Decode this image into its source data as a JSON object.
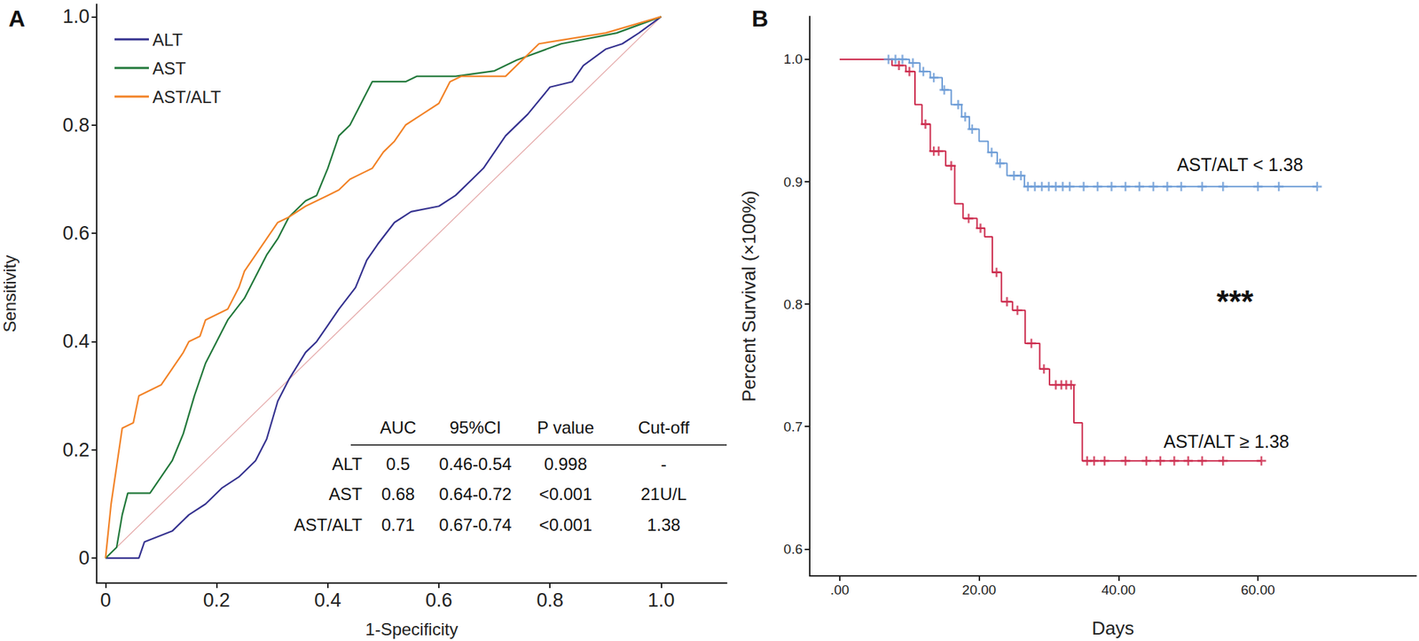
{
  "chart_data": [
    {
      "panel": "A",
      "type": "line",
      "x_label": "1-Specificity",
      "y_label": "Sensitivity",
      "xlim": [
        -0.016,
        1.118
      ],
      "ylim": [
        -0.046,
        1.023
      ],
      "xticks": [
        0,
        0.2,
        0.4,
        0.6,
        0.8,
        {
          "value": 1,
          "label": "1.0"
        }
      ],
      "yticks": [
        0,
        0.2,
        0.4,
        0.6,
        0.8,
        {
          "value": 1,
          "label": "1.0"
        }
      ],
      "legend": "top-left",
      "series": [
        {
          "name": "ALT",
          "color": "#34318f",
          "x": [
            0,
            0.06,
            0.07,
            0.12,
            0.15,
            0.18,
            0.21,
            0.24,
            0.27,
            0.29,
            0.31,
            0.33,
            0.36,
            0.38,
            0.4,
            0.42,
            0.45,
            0.47,
            0.49,
            0.52,
            0.55,
            0.6,
            0.63,
            0.66,
            0.68,
            0.72,
            0.76,
            0.8,
            0.84,
            0.86,
            0.9,
            0.93,
            0.96,
            1
          ],
          "values": [
            0,
            0,
            0.03,
            0.05,
            0.08,
            0.1,
            0.13,
            0.15,
            0.18,
            0.22,
            0.29,
            0.33,
            0.38,
            0.4,
            0.43,
            0.46,
            0.5,
            0.55,
            0.58,
            0.62,
            0.64,
            0.65,
            0.67,
            0.7,
            0.72,
            0.78,
            0.82,
            0.87,
            0.88,
            0.91,
            0.94,
            0.95,
            0.97,
            1
          ]
        },
        {
          "name": "AST",
          "color": "#21783a",
          "x": [
            0,
            0.02,
            0.03,
            0.04,
            0.08,
            0.1,
            0.12,
            0.14,
            0.16,
            0.18,
            0.2,
            0.22,
            0.25,
            0.27,
            0.29,
            0.31,
            0.33,
            0.36,
            0.38,
            0.4,
            0.42,
            0.44,
            0.46,
            0.48,
            0.54,
            0.56,
            0.63,
            0.7,
            0.74,
            0.82,
            0.92,
            1
          ],
          "values": [
            0,
            0.02,
            0.08,
            0.12,
            0.12,
            0.15,
            0.18,
            0.23,
            0.3,
            0.36,
            0.4,
            0.44,
            0.48,
            0.52,
            0.56,
            0.59,
            0.63,
            0.66,
            0.67,
            0.72,
            0.78,
            0.8,
            0.84,
            0.88,
            0.88,
            0.89,
            0.89,
            0.9,
            0.92,
            0.95,
            0.97,
            1
          ]
        },
        {
          "name": "AST/ALT",
          "color": "#f28226",
          "x": [
            0,
            0.01,
            0.02,
            0.03,
            0.05,
            0.06,
            0.1,
            0.12,
            0.14,
            0.15,
            0.17,
            0.18,
            0.22,
            0.24,
            0.25,
            0.27,
            0.29,
            0.31,
            0.33,
            0.36,
            0.38,
            0.4,
            0.42,
            0.44,
            0.48,
            0.5,
            0.52,
            0.54,
            0.57,
            0.6,
            0.62,
            0.64,
            0.72,
            0.78,
            0.9,
            1
          ],
          "values": [
            0,
            0.1,
            0.17,
            0.24,
            0.25,
            0.3,
            0.32,
            0.35,
            0.38,
            0.4,
            0.41,
            0.44,
            0.46,
            0.5,
            0.53,
            0.56,
            0.59,
            0.62,
            0.63,
            0.65,
            0.66,
            0.67,
            0.68,
            0.7,
            0.72,
            0.75,
            0.77,
            0.8,
            0.82,
            0.84,
            0.88,
            0.89,
            0.89,
            0.95,
            0.97,
            1
          ]
        }
      ],
      "diagonal": {
        "x": [
          0,
          1
        ],
        "values": [
          0,
          1
        ],
        "color": "#e3a3a3"
      },
      "table": {
        "columns": [
          "AUC",
          "95%CI",
          "P value",
          "Cut-off"
        ],
        "rows": [
          {
            "label": "ALT",
            "cells": [
              "0.5",
              "0.46-0.54",
              "0.998",
              "-"
            ]
          },
          {
            "label": "AST",
            "cells": [
              "0.68",
              "0.64-0.72",
              "<0.001",
              "21U/L"
            ]
          },
          {
            "label": "AST/ALT",
            "cells": [
              "0.71",
              "0.67-0.74",
              "<0.001",
              "1.38"
            ]
          }
        ]
      }
    },
    {
      "panel": "B",
      "type": "step",
      "marker": "plus",
      "x_label": "Days",
      "y_label": "Percent Survival (×100%)",
      "xlim": [
        -4.3,
        82.7
      ],
      "ylim": [
        0.578,
        1.035
      ],
      "xticks": [
        {
          "value": 0,
          "label": ".00"
        },
        {
          "value": 20,
          "label": "20.00"
        },
        {
          "value": 40,
          "label": "40.00"
        },
        {
          "value": 60,
          "label": "60.00"
        }
      ],
      "yticks": [
        0.6,
        0.7,
        0.8,
        0.9,
        {
          "value": 1,
          "label": "1.0"
        }
      ],
      "annotation": "***",
      "series": [
        {
          "name": "AST/ALT < 1.38",
          "color": "#6b9bd6",
          "x": [
            0,
            10,
            11.5,
            13,
            14.7,
            16,
            17.5,
            18.6,
            20,
            21.3,
            22.6,
            24,
            26.5,
            68.5
          ],
          "values": [
            1,
            0.997,
            0.99,
            0.985,
            0.975,
            0.963,
            0.953,
            0.943,
            0.933,
            0.924,
            0.915,
            0.905,
            0.896,
            0.896
          ],
          "censored_x": [
            7,
            8,
            9,
            10.5,
            12,
            13.5,
            15,
            17,
            18,
            19,
            21.8,
            23,
            25,
            26,
            27,
            28,
            29,
            30,
            31,
            32,
            33,
            35,
            37,
            39,
            41,
            43,
            45,
            47,
            49,
            52,
            55,
            60,
            63,
            68.5
          ],
          "censored_y": [
            1,
            1,
            1,
            0.997,
            0.99,
            0.985,
            0.975,
            0.963,
            0.953,
            0.943,
            0.924,
            0.915,
            0.905,
            0.905,
            0.896,
            0.896,
            0.896,
            0.896,
            0.896,
            0.896,
            0.896,
            0.896,
            0.896,
            0.896,
            0.896,
            0.896,
            0.896,
            0.896,
            0.896,
            0.896,
            0.896,
            0.896,
            0.896,
            0.896
          ]
        },
        {
          "name": "AST/ALT ≥ 1.38",
          "color": "#cc2a4c",
          "x": [
            0,
            7.5,
            9.5,
            10.8,
            11.8,
            13,
            15.2,
            16.5,
            17.7,
            19.7,
            20.8,
            21.9,
            23.2,
            24.8,
            26.6,
            28.7,
            30.1,
            33.6,
            34.8,
            60.5
          ],
          "values": [
            1,
            0.995,
            0.99,
            0.963,
            0.947,
            0.925,
            0.913,
            0.882,
            0.87,
            0.862,
            0.855,
            0.826,
            0.802,
            0.795,
            0.768,
            0.747,
            0.734,
            0.703,
            0.672,
            0.672
          ],
          "censored_x": [
            8.5,
            10,
            12.3,
            13.5,
            14.2,
            16,
            18.5,
            20.2,
            22.5,
            24,
            25.5,
            27.5,
            29.3,
            31,
            31.8,
            32.5,
            33.2,
            35.5,
            36.5,
            38,
            41,
            44,
            46,
            48,
            50,
            52,
            55,
            60.5
          ],
          "censored_y": [
            0.995,
            0.99,
            0.947,
            0.925,
            0.925,
            0.913,
            0.87,
            0.862,
            0.826,
            0.802,
            0.795,
            0.768,
            0.747,
            0.734,
            0.734,
            0.734,
            0.734,
            0.672,
            0.672,
            0.672,
            0.672,
            0.672,
            0.672,
            0.672,
            0.672,
            0.672,
            0.672,
            0.672
          ]
        }
      ]
    }
  ]
}
